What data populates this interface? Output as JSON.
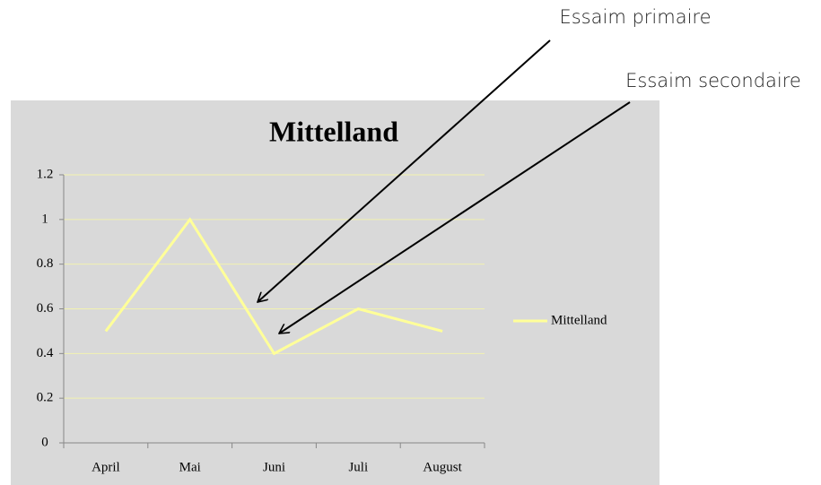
{
  "chart_data": {
    "type": "line",
    "title": "Mittelland",
    "categories": [
      "April",
      "Mai",
      "Juni",
      "Juli",
      "August"
    ],
    "series": [
      {
        "name": "Mittelland",
        "color": "#ffff99",
        "values": [
          0.5,
          1,
          0.4,
          0.6,
          0.5
        ]
      }
    ],
    "ylim": [
      0,
      1.2
    ],
    "yticks": [
      0,
      0.2,
      0.4,
      0.6,
      0.8,
      1,
      1.2
    ],
    "grid": true,
    "legend": "right",
    "annotations": [
      "Essaim primaire",
      "Essaim secondaire"
    ]
  }
}
